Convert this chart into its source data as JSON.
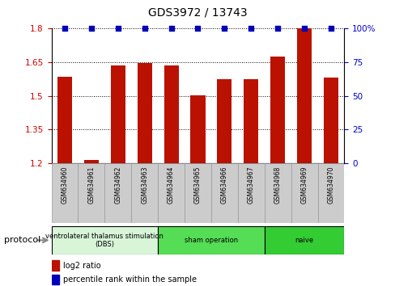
{
  "title": "GDS3972 / 13743",
  "samples": [
    "GSM634960",
    "GSM634961",
    "GSM634962",
    "GSM634963",
    "GSM634964",
    "GSM634965",
    "GSM634966",
    "GSM634967",
    "GSM634968",
    "GSM634969",
    "GSM634970"
  ],
  "log2_ratio": [
    1.585,
    1.215,
    1.635,
    1.648,
    1.635,
    1.502,
    1.575,
    1.575,
    1.675,
    1.8,
    1.58
  ],
  "percentile_rank": [
    100,
    100,
    100,
    100,
    100,
    100,
    100,
    100,
    100,
    100,
    100
  ],
  "ylim_left": [
    1.2,
    1.8
  ],
  "ylim_right": [
    0,
    100
  ],
  "yticks_left": [
    1.2,
    1.35,
    1.5,
    1.65,
    1.8
  ],
  "yticks_right": [
    0,
    25,
    50,
    75,
    100
  ],
  "ytick_labels_left": [
    "1.2",
    "1.35",
    "1.5",
    "1.65",
    "1.8"
  ],
  "ytick_labels_right": [
    "0",
    "25",
    "50",
    "75",
    "100%"
  ],
  "bar_color": "#bb1100",
  "dot_color": "#0000bb",
  "protocol_groups": [
    {
      "label": "ventrolateral thalamus stimulation\n(DBS)",
      "start": 0,
      "end": 3,
      "color": "#d8f5d8"
    },
    {
      "label": "sham operation",
      "start": 4,
      "end": 7,
      "color": "#55dd55"
    },
    {
      "label": "naive",
      "start": 8,
      "end": 10,
      "color": "#33cc33"
    }
  ],
  "legend_bar_label": "log2 ratio",
  "legend_dot_label": "percentile rank within the sample",
  "protocol_label": "protocol",
  "background_color": "#ffffff",
  "plot_bg": "#ffffff",
  "left_tick_color": "#cc0000",
  "right_tick_color": "#0000cc",
  "sample_box_color": "#cccccc",
  "sample_box_edge": "#999999"
}
